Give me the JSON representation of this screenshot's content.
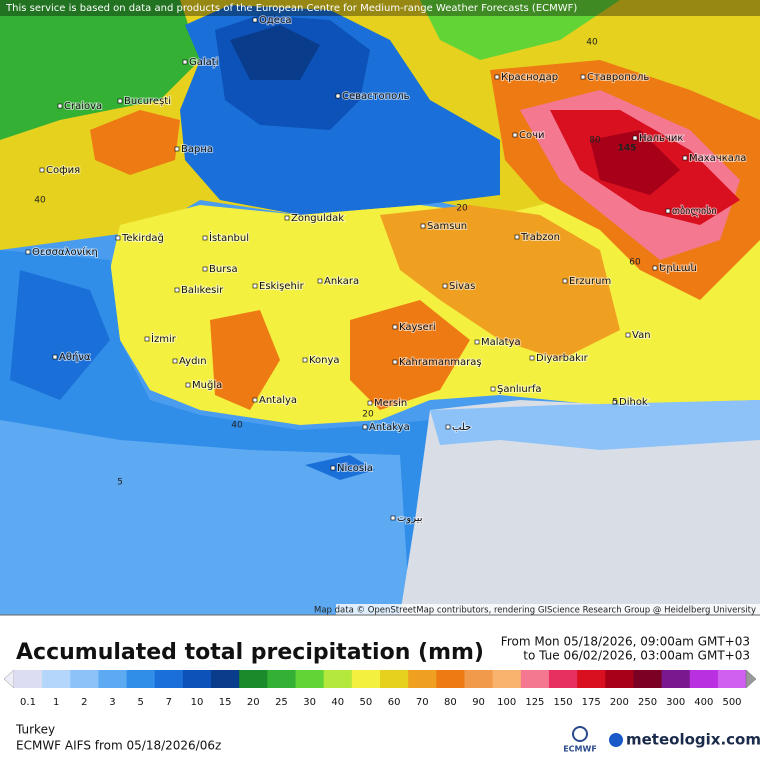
{
  "notice": "This service is based on data and products of the European Centre for Medium-range Weather Forecasts (ECMWF)",
  "attribution": "Map data © OpenStreetMap contributors, rendering GIScience Research Group @ Heidelberg University",
  "title": "Accumulated total precipitation (mm)",
  "date_from": "From Mon 05/18/2026, 09:00am GMT+03",
  "date_to": "to Tue 06/02/2026, 03:00am GMT+03",
  "legend": {
    "values": [
      "0.1",
      "1",
      "2",
      "3",
      "5",
      "7",
      "10",
      "15",
      "20",
      "25",
      "30",
      "40",
      "50",
      "60",
      "70",
      "80",
      "90",
      "100",
      "125",
      "150",
      "175",
      "200",
      "250",
      "300",
      "400",
      "500"
    ],
    "colors": [
      "#dcdcf2",
      "#b4d6fa",
      "#8cc2f8",
      "#5eaaf2",
      "#308ee8",
      "#1a70d8",
      "#0c52b8",
      "#0a3c8c",
      "#1a8a2a",
      "#34b034",
      "#62d436",
      "#b4e83c",
      "#f4f040",
      "#e6d21e",
      "#f0a020",
      "#ee7a14",
      "#f29a4c",
      "#f8b46e",
      "#f47890",
      "#e83060",
      "#d81020",
      "#a80018",
      "#7a0024",
      "#7a1890",
      "#b830e0",
      "#d060f0"
    ]
  },
  "region": "Turkey",
  "model_run": "ECMWF AIFS from  05/18/2026/06z",
  "logos": {
    "ecmwf": "ECMWF",
    "meteologix": "meteologix.com"
  },
  "cities": [
    "Одеса",
    "Galați",
    "Craiova",
    "București",
    "Севастополь",
    "Краснодар",
    "Ставрополь",
    "Сочи",
    "Нальчик",
    "Махачкала",
    "София",
    "Варна",
    "Zonguldak",
    "Tekirdağ",
    "İstanbul",
    "Samsun",
    "Trabzon",
    "თბილისი",
    "Θεσσαλονίκη",
    "Bursa",
    "Balıkesir",
    "Eskişehir",
    "Ankara",
    "Sivas",
    "Erzurum",
    "Երևան",
    "Kayseri",
    "İzmir",
    "Malatya",
    "Van",
    "Diyarbakır",
    "Αθήνα",
    "Aydın",
    "Konya",
    "Kahramanmaraş",
    "Şanlıurfa",
    "Muğla",
    "Antalya",
    "Mersin",
    "Dihok",
    "Antakya",
    "Nicosia",
    "حلب",
    "بيروت"
  ],
  "contour_labels": [
    "145",
    "40",
    "40",
    "20",
    "80",
    "60",
    "40",
    "20",
    "5",
    "5"
  ]
}
